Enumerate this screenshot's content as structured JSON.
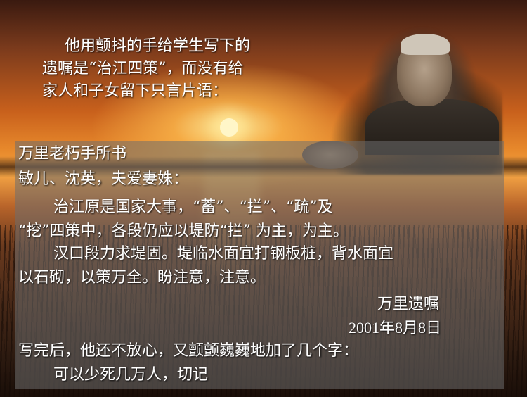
{
  "intro": {
    "line1": "他用颤抖的手给学生写下的",
    "line2": "遗嘱是“治江四策”，而没有给",
    "line3": "家人和子女留下只言片语："
  },
  "letter": {
    "line1": "万里老朽手所书",
    "line2": "敏儿、沈英，夫爱妻姝：",
    "line3": "治江原是国家大事，“蓄”、“拦”、“疏”及",
    "line4": "“挖”四策中，各段仍应以堤防“拦” 为主，为主。",
    "line5": "汉口段力求堤固。堤临水面宜打钢板桩，背水面宜",
    "line6": "以石砌，以策万全。盼注意，注意。",
    "signature": "万里遗嘱",
    "date": "2001年8月8日",
    "after1": "写完后，他还不放心，又颤颤巍巍地加了几个字：",
    "after2": "可以少死几万人，切记"
  },
  "colors": {
    "text": "#ffffff",
    "panel": "#6e6e6e"
  }
}
